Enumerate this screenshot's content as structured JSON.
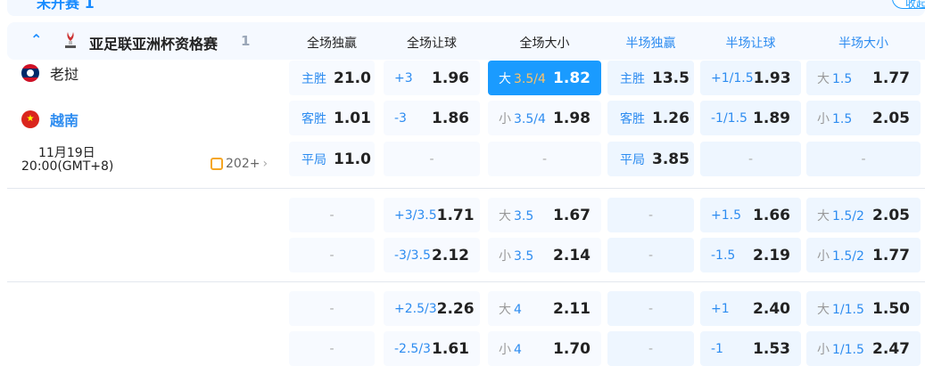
{
  "status_tab": {
    "label": "未开赛 1"
  },
  "collapse_button": {
    "label": "收起"
  },
  "league": {
    "name": "亚足联亚洲杯资格赛",
    "count": "1"
  },
  "headers": [
    "全场独赢",
    "全场让球",
    "全场大小",
    "半场独赢",
    "半场让球",
    "半场大小"
  ],
  "header_colors": {
    "fulltime": "#222222",
    "halftime": "#2d8cf0"
  },
  "match": {
    "home": "老挝",
    "away": "越南",
    "date": "11月19日",
    "time": "20:00(GMT+8)",
    "more_markets": "202+"
  },
  "colors": {
    "accent": "#1a9bff",
    "highlight_line": "#ffc266"
  },
  "sections": [
    {
      "rows": [
        [
          {
            "label": "主胜",
            "odds": "21.0"
          },
          {
            "label": "+3",
            "odds": "1.96"
          },
          {
            "prefix": "大",
            "label": "3.5/4",
            "odds": "1.82",
            "selected": true
          },
          {
            "label": "主胜",
            "odds": "13.5"
          },
          {
            "label": "+1/1.5",
            "odds": "1.93"
          },
          {
            "prefix": "大",
            "label": "1.5",
            "odds": "1.77"
          }
        ],
        [
          {
            "label": "客胜",
            "odds": "1.01"
          },
          {
            "label": "-3",
            "odds": "1.86"
          },
          {
            "prefix": "小",
            "label": "3.5/4",
            "odds": "1.98"
          },
          {
            "label": "客胜",
            "odds": "1.26"
          },
          {
            "label": "-1/1.5",
            "odds": "1.89"
          },
          {
            "prefix": "小",
            "label": "1.5",
            "odds": "2.05"
          }
        ],
        [
          {
            "label": "平局",
            "odds": "11.0"
          },
          {
            "empty": "-"
          },
          {
            "empty": "-"
          },
          {
            "label": "平局",
            "odds": "3.85"
          },
          {
            "empty": "-"
          },
          {
            "empty": "-"
          }
        ]
      ]
    },
    {
      "rows": [
        [
          {
            "empty": "-"
          },
          {
            "label": "+3/3.5",
            "odds": "1.71"
          },
          {
            "prefix": "大",
            "label": "3.5",
            "odds": "1.67"
          },
          {
            "empty": "-"
          },
          {
            "label": "+1.5",
            "odds": "1.66"
          },
          {
            "prefix": "大",
            "label": "1.5/2",
            "odds": "2.05"
          }
        ],
        [
          {
            "empty": "-"
          },
          {
            "label": "-3/3.5",
            "odds": "2.12"
          },
          {
            "prefix": "小",
            "label": "3.5",
            "odds": "2.14"
          },
          {
            "empty": "-"
          },
          {
            "label": "-1.5",
            "odds": "2.19"
          },
          {
            "prefix": "小",
            "label": "1.5/2",
            "odds": "1.77"
          }
        ]
      ]
    },
    {
      "rows": [
        [
          {
            "empty": "-"
          },
          {
            "label": "+2.5/3",
            "odds": "2.26"
          },
          {
            "prefix": "大",
            "label": "4",
            "odds": "2.11"
          },
          {
            "empty": "-"
          },
          {
            "label": "+1",
            "odds": "2.40"
          },
          {
            "prefix": "大",
            "label": "1/1.5",
            "odds": "1.50"
          }
        ],
        [
          {
            "empty": "-"
          },
          {
            "label": "-2.5/3",
            "odds": "1.61"
          },
          {
            "prefix": "小",
            "label": "4",
            "odds": "1.70"
          },
          {
            "empty": "-"
          },
          {
            "label": "-1",
            "odds": "1.53"
          },
          {
            "prefix": "小",
            "label": "1/1.5",
            "odds": "2.47"
          }
        ]
      ]
    }
  ]
}
